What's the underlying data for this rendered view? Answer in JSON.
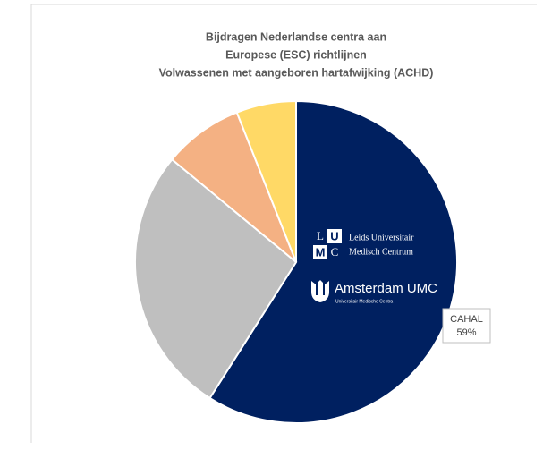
{
  "chart_data": {
    "type": "pie",
    "title": [
      "Bijdragen Nederlandse centra aan",
      "Europese (ESC) richtlijnen",
      "Volwassenen met aangeboren hartafwijking (ACHD)"
    ],
    "categories": [
      "CAHAL",
      null,
      null,
      null
    ],
    "values": [
      59,
      27,
      8,
      6
    ],
    "value_labels": [
      "59%",
      null,
      null,
      null
    ],
    "colors": [
      "#002060",
      "#bfbfbf",
      "#f4b183",
      "#ffd966"
    ]
  },
  "logos": {
    "lumc_letters": [
      "L",
      "U",
      "M",
      "C"
    ],
    "lumc_name": [
      "Leids Universitair",
      "Medisch Centrum"
    ],
    "amsterdam_name": "Amsterdam UMC",
    "amsterdam_sub": "Universitair Medische Centra"
  }
}
